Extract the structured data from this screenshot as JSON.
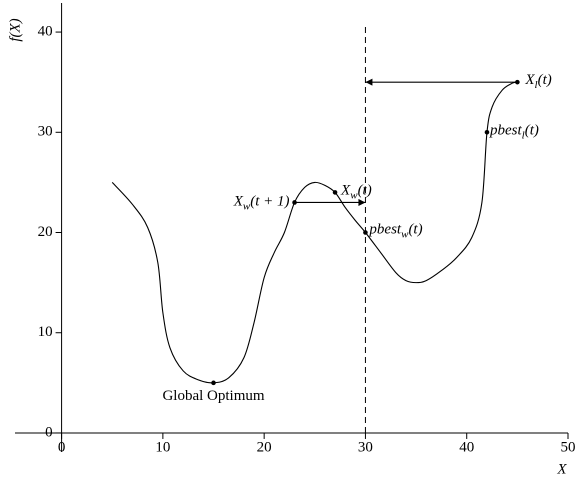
{
  "chart_data": {
    "type": "line",
    "x_label": "X",
    "y_label": "f(X)",
    "x": [
      5,
      7,
      8.5,
      9.5,
      10,
      10.7,
      12,
      13.5,
      15,
      16.5,
      18,
      19,
      20,
      21,
      22,
      23,
      24,
      25,
      26,
      27,
      28,
      29,
      30,
      31.5,
      33,
      34,
      35,
      36,
      37.5,
      39,
      40.5,
      41.5,
      42,
      42.5,
      43.5,
      44.5,
      45
    ],
    "values": [
      25,
      22.8,
      20.5,
      17,
      12,
      8.5,
      6.2,
      5.3,
      5,
      5.5,
      7.5,
      11,
      15.5,
      18,
      20,
      23,
      24.5,
      25,
      24.7,
      24,
      22.5,
      21.2,
      20,
      18,
      16,
      15.2,
      15,
      15.2,
      16.2,
      17.5,
      19.5,
      23,
      30,
      32.5,
      34.2,
      34.9,
      35
    ],
    "color": "#000000",
    "xlim": [
      -4.6,
      50
    ],
    "ylim": [
      -1.9,
      42.9
    ],
    "xticks": [
      0,
      10,
      20,
      30,
      40,
      50
    ],
    "yticks": [
      0,
      10,
      20,
      30,
      40
    ],
    "vline": 30,
    "arrows": [
      {
        "x1": 23,
        "x2": 30,
        "y": 23
      },
      {
        "x1": 45,
        "x2": 30,
        "y": 35
      }
    ],
    "points": [
      {
        "x": 15,
        "y": 5,
        "label": {
          "main": "Global Optimum"
        }
      },
      {
        "x": 23,
        "y": 23,
        "label": {
          "main": "X",
          "sub": "w",
          "rest": "(t + 1)"
        }
      },
      {
        "x": 27,
        "y": 24,
        "label": {
          "main": "X",
          "sub": "w",
          "rest": "(t)"
        }
      },
      {
        "x": 30,
        "y": 20,
        "label": {
          "main": "pbest",
          "sub": "w",
          "rest": "(t)"
        }
      },
      {
        "x": 42,
        "y": 30,
        "label": {
          "main": "pbest",
          "sub": "l",
          "rest": "(t)"
        }
      },
      {
        "x": 45,
        "y": 35,
        "label": {
          "main": "X",
          "sub": "l",
          "rest": "(t)"
        }
      }
    ]
  }
}
